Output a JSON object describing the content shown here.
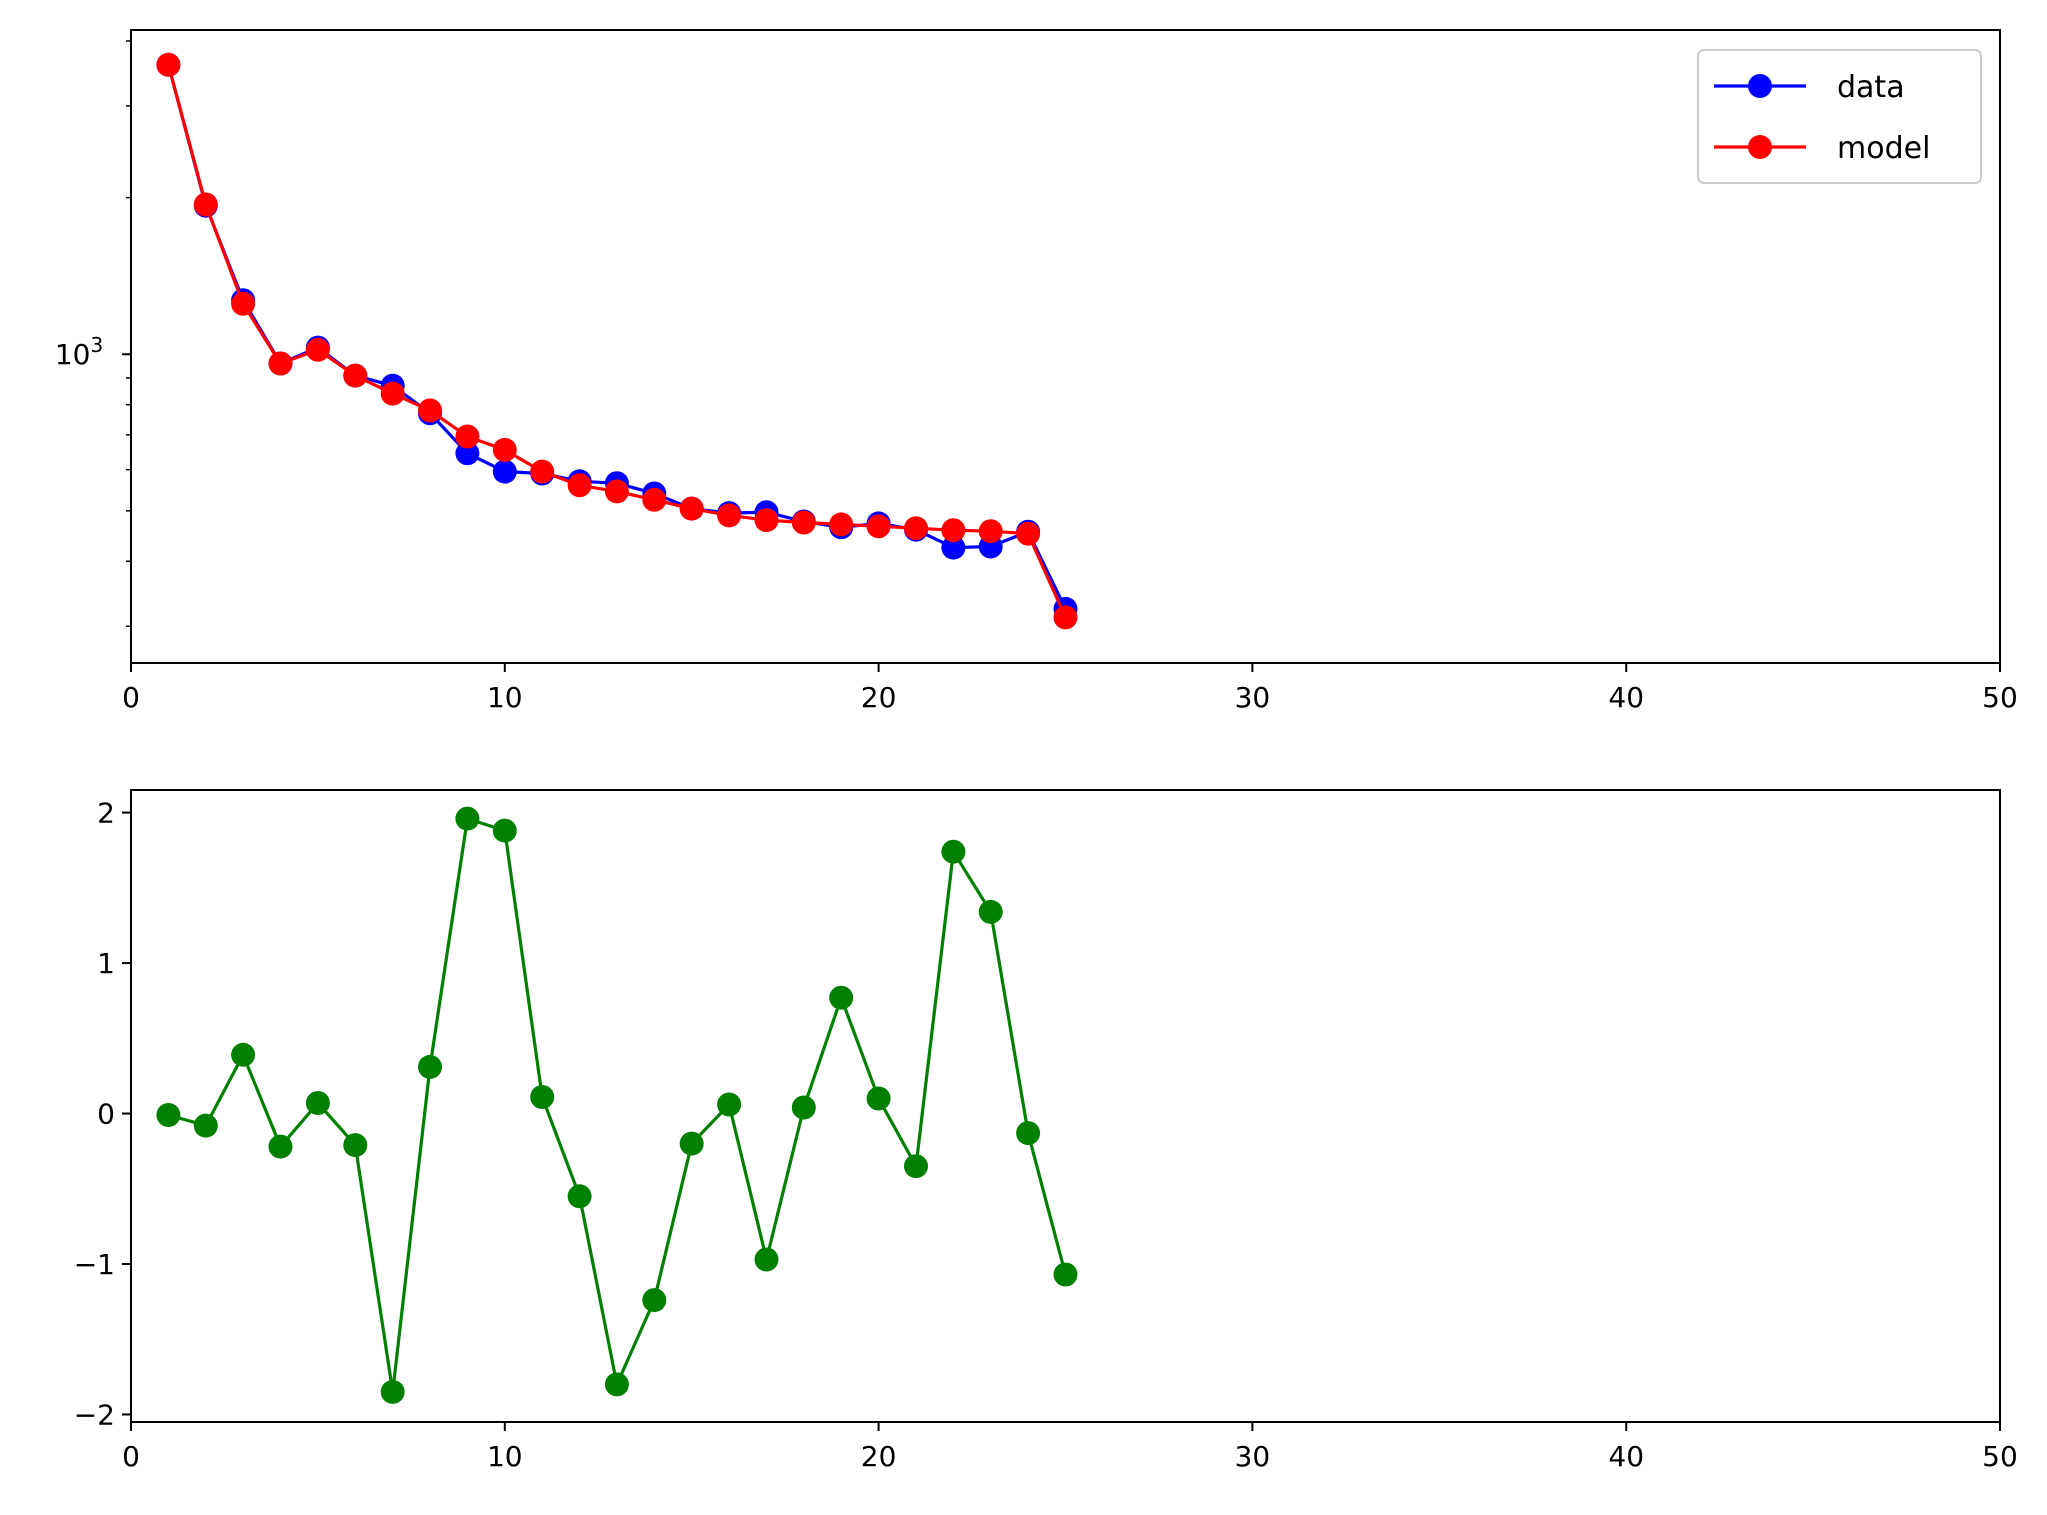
{
  "chart_data": [
    {
      "type": "line",
      "title": "",
      "xlabel": "",
      "ylabel": "",
      "yscale": "log",
      "xlim": [
        0,
        50
      ],
      "ylim": [
        255,
        4200
      ],
      "xticks": [
        0,
        10,
        20,
        30,
        40,
        50
      ],
      "xtick_labels": [
        "0",
        "10",
        "20",
        "30",
        "40",
        "50"
      ],
      "yticks_major": [
        1000
      ],
      "ytick_base": "10",
      "ytick_exp": "3",
      "yticks_minor": [
        300,
        400,
        500,
        600,
        700,
        800,
        900,
        2000,
        3000,
        4000
      ],
      "grid": false,
      "legend_position": "upper right",
      "x": [
        1,
        2,
        3,
        4,
        5,
        6,
        7,
        8,
        9,
        10,
        11,
        12,
        13,
        14,
        15,
        16,
        17,
        18,
        19,
        20,
        21,
        22,
        23,
        24,
        25
      ],
      "series": [
        {
          "name": "data",
          "color": "#0000ff",
          "marker": "circle",
          "values": [
            3600,
            1930,
            1270,
            960,
            1030,
            910,
            870,
            770,
            645,
            595,
            590,
            570,
            565,
            540,
            505,
            495,
            497,
            477,
            465,
            473,
            460,
            425,
            427,
            456,
            324
          ]
        },
        {
          "name": "model",
          "color": "#ff0000",
          "marker": "circle",
          "values": [
            3600,
            1940,
            1250,
            960,
            1020,
            910,
            840,
            780,
            695,
            655,
            595,
            560,
            545,
            525,
            505,
            490,
            480,
            475,
            471,
            467,
            463,
            459,
            457,
            452,
            312
          ]
        }
      ]
    },
    {
      "type": "line",
      "title": "",
      "xlabel": "",
      "ylabel": "",
      "xlim": [
        0,
        50
      ],
      "ylim": [
        -2.05,
        2.15
      ],
      "xticks": [
        0,
        10,
        20,
        30,
        40,
        50
      ],
      "xtick_labels": [
        "0",
        "10",
        "20",
        "30",
        "40",
        "50"
      ],
      "yticks": [
        -2,
        -1,
        0,
        1,
        2
      ],
      "ytick_labels": [
        "−2",
        "−1",
        "0",
        "1",
        "2"
      ],
      "grid": false,
      "x": [
        1,
        2,
        3,
        4,
        5,
        6,
        7,
        8,
        9,
        10,
        11,
        12,
        13,
        14,
        15,
        16,
        17,
        18,
        19,
        20,
        21,
        22,
        23,
        24,
        25
      ],
      "series": [
        {
          "color": "#008000",
          "marker": "circle",
          "values": [
            -0.01,
            -0.08,
            0.39,
            -0.22,
            0.07,
            -0.21,
            -1.85,
            0.31,
            1.96,
            1.88,
            0.11,
            -0.55,
            -1.8,
            -1.24,
            -0.2,
            0.06,
            -0.97,
            0.04,
            0.77,
            0.1,
            -0.35,
            1.74,
            1.34,
            -0.13,
            -1.07
          ]
        }
      ]
    }
  ]
}
